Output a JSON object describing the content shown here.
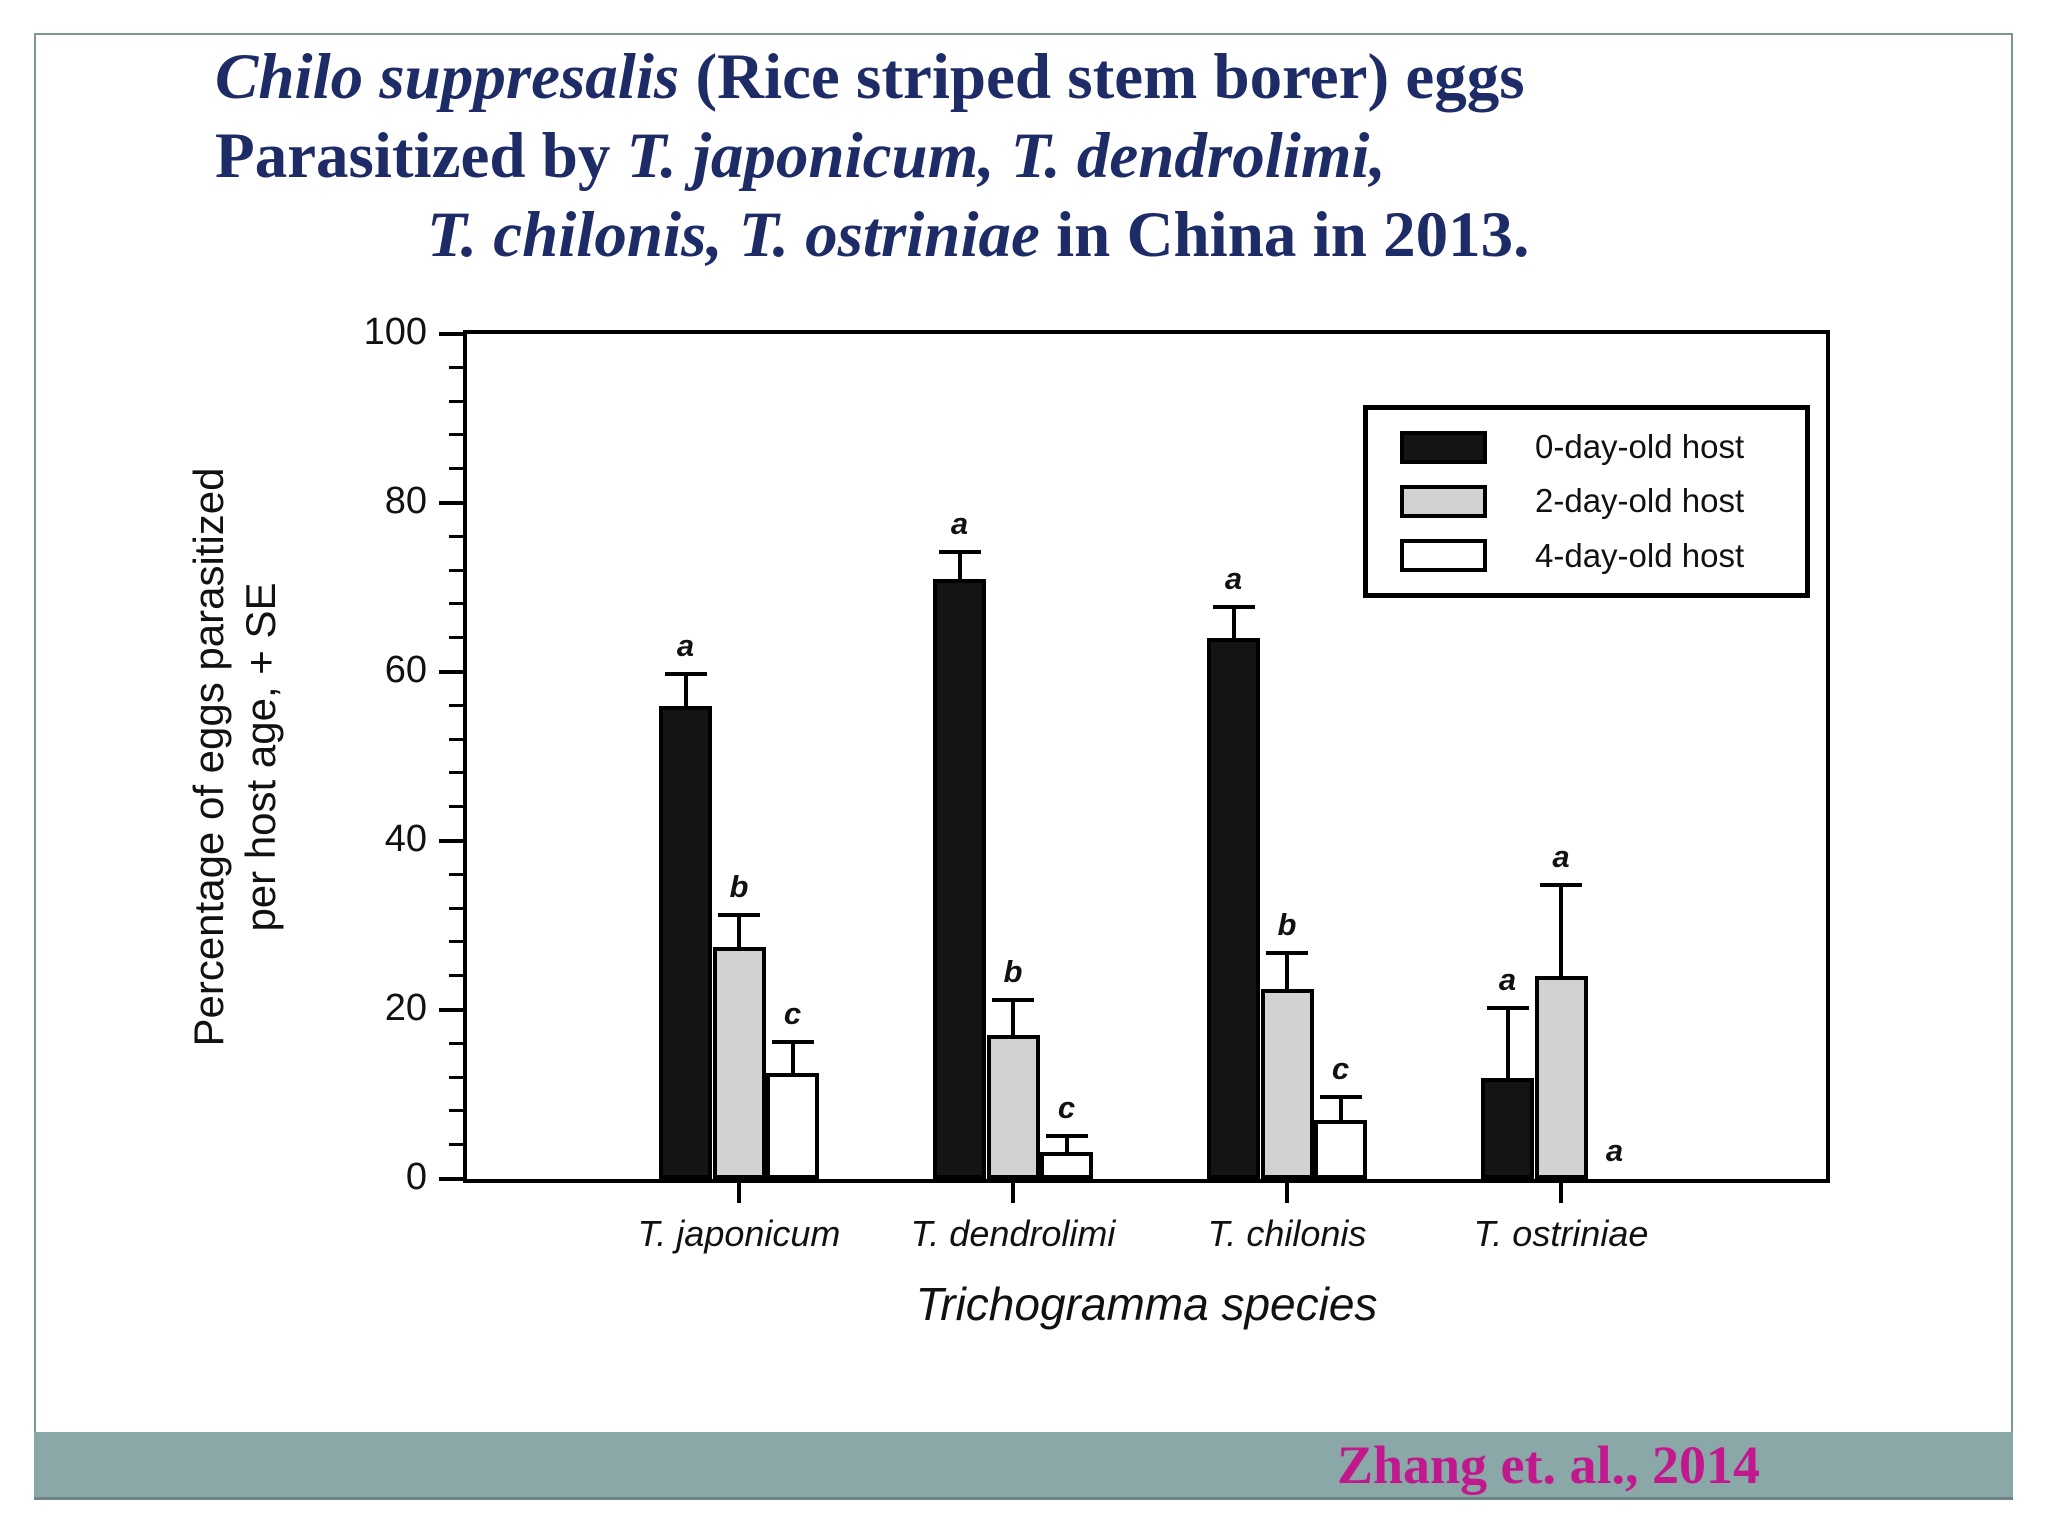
{
  "slide": {
    "title_lines": [
      [
        {
          "text": "Chilo suppresalis",
          "italic": true
        },
        {
          "text": " (Rice striped stem borer) eggs",
          "italic": false
        }
      ],
      [
        {
          "text": "Parasitized by ",
          "italic": false
        },
        {
          "text": "T. japonicum, T. dendrolimi,",
          "italic": true
        }
      ],
      [
        {
          "text": "T. chilonis, T. ostriniae",
          "italic": true
        },
        {
          "text": " in China in 2013.",
          "italic": false
        }
      ]
    ],
    "citation": "Zhang et. al., 2014",
    "colors": {
      "title_text": "#1d2b66",
      "citation_text": "#c2188e",
      "bottom_band": "#8aa8a8",
      "slide_border": "#7d9595"
    }
  },
  "chart_data": {
    "type": "bar",
    "title": "",
    "categories": [
      "T. japonicum",
      "T. dendrolimi",
      "T. chilonis",
      "T. ostriniae"
    ],
    "series": [
      {
        "name": "0-day-old host",
        "color": "#141414",
        "values": [
          56,
          71,
          64,
          12
        ],
        "se": [
          3.5,
          3,
          3.5,
          8
        ],
        "letters": [
          "a",
          "a",
          "a",
          "a"
        ]
      },
      {
        "name": "2-day-old host",
        "color": "#d2d2d2",
        "values": [
          27.5,
          17,
          22.5,
          24
        ],
        "se": [
          3.5,
          4,
          4,
          10.5
        ],
        "letters": [
          "b",
          "b",
          "b",
          "a"
        ]
      },
      {
        "name": "4-day-old host",
        "color": "#ffffff",
        "values": [
          12.5,
          3.2,
          7,
          0
        ],
        "se": [
          3.5,
          1.6,
          2.5,
          0
        ],
        "letters": [
          "c",
          "c",
          "c",
          "a"
        ]
      }
    ],
    "xlabel": "Trichogramma species",
    "ylabel_lines": [
      "Percentage of eggs parasitized",
      "per host age, + SE"
    ],
    "ylim": [
      0,
      100
    ],
    "ytick_step": 20,
    "yminor_step": 4,
    "grid": false,
    "legend_position": "upper-right"
  }
}
